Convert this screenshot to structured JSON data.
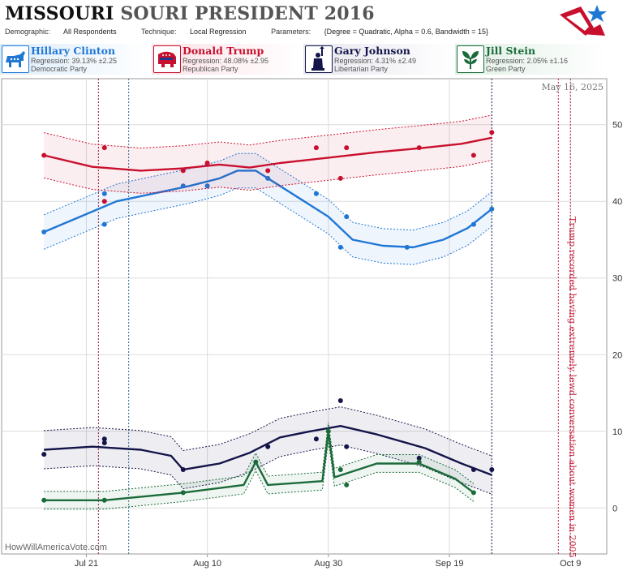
{
  "header": {
    "state": "MISSOURI",
    "title_rest": "SOURI PRESIDENT 2016",
    "demographic_label": "Demographic:",
    "demographic": "All Respondents",
    "technique_label": "Technique:",
    "technique": "Local Regression",
    "parameters_label": "Parameters:",
    "parameters": "{Degree = Quadratic, Alpha = 0.6, Bandwidth = 15}"
  },
  "candidates": [
    {
      "name": "Hillary Clinton",
      "regression": "Regression: 39.13% ±2.25",
      "party": "Democratic Party",
      "color": "#1f77d4",
      "bg": "#e3f0fb",
      "icon": "donkey-icon"
    },
    {
      "name": "Donald Trump",
      "regression": "Regression: 48.08% ±2.95",
      "party": "Republican Party",
      "color": "#c8102e",
      "bg": "#fbe4e8",
      "icon": "elephant-icon"
    },
    {
      "name": "Gary Johnson",
      "regression": "Regression: 4.31% ±2.49",
      "party": "Libertarian Party",
      "color": "#14144a",
      "bg": "#ececf2",
      "icon": "statue-of-liberty-icon"
    },
    {
      "name": "Jill Stein",
      "regression": "Regression: 2.05% ±1.16",
      "party": "Green Party",
      "color": "#1a6b3a",
      "bg": "#e6f2ea",
      "icon": "leaf-icon"
    }
  ],
  "chart_data": {
    "type": "scatter",
    "title": "MISSOURI SOURI PRESIDENT 2016",
    "x_ticks": [
      "Jul 21",
      "Aug 10",
      "Aug 30",
      "Sep 19",
      "Oct 9"
    ],
    "xlim": [
      "2016-07-07",
      "2016-10-15"
    ],
    "y_ticks": [
      0,
      10,
      20,
      30,
      40,
      50
    ],
    "ylim": [
      -6,
      56
    ],
    "grid": true,
    "series": [
      {
        "name": "Hillary Clinton",
        "color": "#1f77d4",
        "points": [
          [
            "2016-07-14",
            36
          ],
          [
            "2016-07-24",
            41
          ],
          [
            "2016-07-24",
            37
          ],
          [
            "2016-08-06",
            42
          ],
          [
            "2016-08-10",
            42
          ],
          [
            "2016-08-20",
            43
          ],
          [
            "2016-08-28",
            41
          ],
          [
            "2016-09-01",
            34
          ],
          [
            "2016-09-02",
            38
          ],
          [
            "2016-09-12",
            34
          ],
          [
            "2016-09-23",
            37
          ],
          [
            "2016-09-26",
            39
          ]
        ],
        "trend": [
          [
            "2016-07-14",
            36
          ],
          [
            "2016-07-20",
            38
          ],
          [
            "2016-07-26",
            40
          ],
          [
            "2016-08-01",
            41
          ],
          [
            "2016-08-07",
            42
          ],
          [
            "2016-08-12",
            43
          ],
          [
            "2016-08-15",
            44
          ],
          [
            "2016-08-18",
            44
          ],
          [
            "2016-08-22",
            42
          ],
          [
            "2016-08-26",
            40
          ],
          [
            "2016-08-30",
            38
          ],
          [
            "2016-09-03",
            35
          ],
          [
            "2016-09-08",
            34.2
          ],
          [
            "2016-09-13",
            34
          ],
          [
            "2016-09-18",
            35
          ],
          [
            "2016-09-22",
            36.5
          ],
          [
            "2016-09-26",
            39
          ]
        ],
        "band": 2.25
      },
      {
        "name": "Donald Trump",
        "color": "#c8102e",
        "points": [
          [
            "2016-07-14",
            46
          ],
          [
            "2016-07-24",
            47
          ],
          [
            "2016-07-24",
            40
          ],
          [
            "2016-08-06",
            44
          ],
          [
            "2016-08-10",
            45
          ],
          [
            "2016-08-20",
            44
          ],
          [
            "2016-08-28",
            47
          ],
          [
            "2016-09-01",
            43
          ],
          [
            "2016-09-02",
            47
          ],
          [
            "2016-09-14",
            47
          ],
          [
            "2016-09-23",
            46
          ],
          [
            "2016-09-26",
            49
          ]
        ],
        "trend": [
          [
            "2016-07-14",
            46
          ],
          [
            "2016-07-22",
            44.5
          ],
          [
            "2016-07-30",
            44
          ],
          [
            "2016-08-06",
            44.3
          ],
          [
            "2016-08-12",
            44.8
          ],
          [
            "2016-08-17",
            44.4
          ],
          [
            "2016-08-22",
            45
          ],
          [
            "2016-08-30",
            45.7
          ],
          [
            "2016-09-07",
            46.4
          ],
          [
            "2016-09-15",
            47
          ],
          [
            "2016-09-21",
            47.5
          ],
          [
            "2016-09-26",
            48.3
          ]
        ],
        "band": 2.95
      },
      {
        "name": "Gary Johnson",
        "color": "#14144a",
        "points": [
          [
            "2016-07-14",
            7
          ],
          [
            "2016-07-24",
            9
          ],
          [
            "2016-07-24",
            8.5
          ],
          [
            "2016-08-06",
            5
          ],
          [
            "2016-08-20",
            8
          ],
          [
            "2016-08-28",
            9
          ],
          [
            "2016-09-01",
            14
          ],
          [
            "2016-09-02",
            8
          ],
          [
            "2016-09-14",
            6.5
          ],
          [
            "2016-09-23",
            5
          ],
          [
            "2016-09-26",
            5
          ]
        ],
        "trend": [
          [
            "2016-07-14",
            7.6
          ],
          [
            "2016-07-22",
            8
          ],
          [
            "2016-07-30",
            7.6
          ],
          [
            "2016-08-04",
            6.8
          ],
          [
            "2016-08-06",
            5
          ],
          [
            "2016-08-12",
            5.8
          ],
          [
            "2016-08-17",
            7.2
          ],
          [
            "2016-08-22",
            9.2
          ],
          [
            "2016-08-27",
            10
          ],
          [
            "2016-09-01",
            10.7
          ],
          [
            "2016-09-07",
            9.6
          ],
          [
            "2016-09-15",
            7.8
          ],
          [
            "2016-09-21",
            5.8
          ],
          [
            "2016-09-26",
            4.3
          ]
        ],
        "band": 2.49
      },
      {
        "name": "Jill Stein",
        "color": "#1a6b3a",
        "points": [
          [
            "2016-07-14",
            1
          ],
          [
            "2016-07-24",
            1
          ],
          [
            "2016-08-06",
            2
          ],
          [
            "2016-08-18",
            6
          ],
          [
            "2016-08-30",
            10
          ],
          [
            "2016-09-01",
            5
          ],
          [
            "2016-09-02",
            3
          ],
          [
            "2016-09-14",
            6
          ],
          [
            "2016-09-23",
            2
          ]
        ],
        "trend": [
          [
            "2016-07-14",
            1
          ],
          [
            "2016-07-24",
            1
          ],
          [
            "2016-08-06",
            2
          ],
          [
            "2016-08-16",
            3
          ],
          [
            "2016-08-18",
            6
          ],
          [
            "2016-08-20",
            3
          ],
          [
            "2016-08-29",
            3.5
          ],
          [
            "2016-08-30",
            10
          ],
          [
            "2016-08-31",
            4
          ],
          [
            "2016-09-07",
            5.8
          ],
          [
            "2016-09-14",
            5.8
          ],
          [
            "2016-09-20",
            3.8
          ],
          [
            "2016-09-23",
            2
          ]
        ],
        "band": 1.16
      }
    ],
    "reference_lines": [
      {
        "date": "2016-07-23",
        "color": "#8a1a3a"
      },
      {
        "date": "2016-07-28",
        "color": "#2a6a8a"
      },
      {
        "date": "2016-09-26",
        "color": "#14144a"
      },
      {
        "date": "2016-10-07",
        "color": "#c41e3a"
      },
      {
        "date": "2016-10-09",
        "color": "#c41e3a"
      }
    ],
    "annotation": "Trump recorded having extremely lewd conversation about women in 2005",
    "date_label": "May 16, 2025",
    "watermark": "HowWillAmericaVote.com"
  }
}
